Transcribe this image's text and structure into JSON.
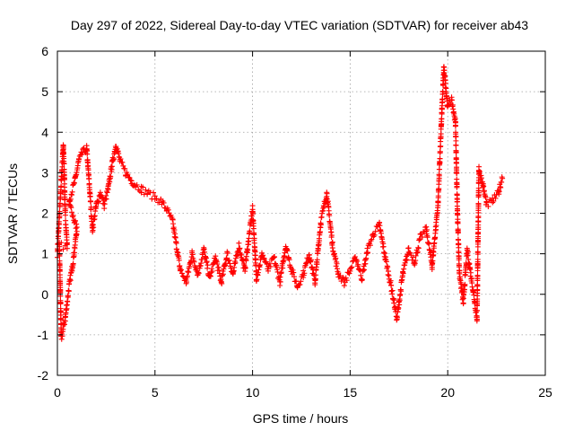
{
  "chart_data": {
    "type": "scatter",
    "title": "Day 297 of 2022, Sidereal Day-to-day VTEC variation (SDTVAR) for receiver ab43",
    "xlabel": "GPS time / hours",
    "ylabel": "SDTVAR / TECUs",
    "xlim": [
      0,
      25
    ],
    "ylim": [
      -2,
      6
    ],
    "xticks": [
      "0",
      "5",
      "10",
      "15",
      "20",
      "25"
    ],
    "yticks": [
      "-2",
      "-1",
      "0",
      "1",
      "2",
      "3",
      "4",
      "5",
      "6"
    ],
    "grid": true,
    "marker": "+",
    "series_color": "#ff0000",
    "series": [
      {
        "name": "SDTVAR",
        "approximate_trace": [
          [
            0.0,
            1.0
          ],
          [
            0.1,
            1.9
          ],
          [
            0.2,
            2.8
          ],
          [
            0.3,
            3.7
          ],
          [
            0.35,
            3.0
          ],
          [
            0.4,
            2.0
          ],
          [
            0.5,
            1.2
          ],
          [
            0.1,
            1.2
          ],
          [
            0.2,
            -1.1
          ],
          [
            0.4,
            -0.6
          ],
          [
            0.6,
            0.2
          ],
          [
            0.8,
            0.8
          ],
          [
            1.0,
            1.6
          ],
          [
            0.6,
            2.3
          ],
          [
            0.9,
            2.8
          ],
          [
            1.1,
            3.3
          ],
          [
            1.3,
            3.5
          ],
          [
            1.5,
            3.6
          ],
          [
            1.8,
            1.6
          ],
          [
            2.0,
            2.2
          ],
          [
            2.2,
            2.5
          ],
          [
            2.4,
            2.2
          ],
          [
            2.6,
            2.6
          ],
          [
            2.8,
            3.2
          ],
          [
            3.0,
            3.7
          ],
          [
            3.2,
            3.3
          ],
          [
            3.5,
            3.0
          ],
          [
            3.8,
            2.8
          ],
          [
            4.0,
            2.7
          ],
          [
            4.3,
            2.6
          ],
          [
            4.6,
            2.5
          ],
          [
            5.0,
            2.4
          ],
          [
            5.3,
            2.3
          ],
          [
            5.6,
            2.1
          ],
          [
            5.9,
            1.8
          ],
          [
            6.1,
            1.2
          ],
          [
            6.3,
            0.6
          ],
          [
            6.6,
            0.3
          ],
          [
            6.9,
            1.0
          ],
          [
            7.2,
            0.5
          ],
          [
            7.5,
            1.1
          ],
          [
            7.8,
            0.4
          ],
          [
            8.1,
            0.9
          ],
          [
            8.4,
            0.3
          ],
          [
            8.7,
            1.0
          ],
          [
            9.0,
            0.5
          ],
          [
            9.3,
            1.2
          ],
          [
            9.6,
            0.6
          ],
          [
            10.0,
            2.1
          ],
          [
            10.2,
            0.4
          ],
          [
            10.5,
            1.0
          ],
          [
            10.8,
            0.6
          ],
          [
            11.1,
            0.9
          ],
          [
            11.4,
            0.3
          ],
          [
            11.7,
            1.2
          ],
          [
            12.0,
            0.6
          ],
          [
            12.3,
            0.2
          ],
          [
            12.6,
            0.5
          ],
          [
            12.9,
            1.0
          ],
          [
            13.2,
            0.3
          ],
          [
            13.5,
            1.8
          ],
          [
            13.8,
            2.5
          ],
          [
            14.1,
            1.2
          ],
          [
            14.4,
            0.5
          ],
          [
            14.7,
            0.3
          ],
          [
            15.0,
            0.6
          ],
          [
            15.3,
            0.9
          ],
          [
            15.6,
            0.4
          ],
          [
            15.9,
            1.1
          ],
          [
            16.2,
            1.5
          ],
          [
            16.5,
            1.7
          ],
          [
            16.8,
            0.9
          ],
          [
            17.1,
            0.2
          ],
          [
            17.4,
            -0.6
          ],
          [
            17.7,
            0.5
          ],
          [
            18.0,
            1.1
          ],
          [
            18.3,
            0.8
          ],
          [
            18.6,
            1.4
          ],
          [
            18.9,
            1.6
          ],
          [
            19.2,
            0.7
          ],
          [
            19.5,
            2.2
          ],
          [
            19.7,
            4.5
          ],
          [
            19.8,
            5.6
          ],
          [
            20.0,
            4.6
          ],
          [
            20.2,
            4.8
          ],
          [
            20.4,
            4.2
          ],
          [
            20.5,
            2.0
          ],
          [
            20.6,
            0.5
          ],
          [
            20.8,
            -0.2
          ],
          [
            21.0,
            1.1
          ],
          [
            21.3,
            0.1
          ],
          [
            21.5,
            -0.6
          ],
          [
            21.6,
            3.1
          ],
          [
            21.8,
            2.7
          ],
          [
            22.0,
            2.2
          ],
          [
            22.3,
            2.3
          ],
          [
            22.6,
            2.5
          ],
          [
            22.8,
            2.9
          ]
        ]
      }
    ]
  }
}
